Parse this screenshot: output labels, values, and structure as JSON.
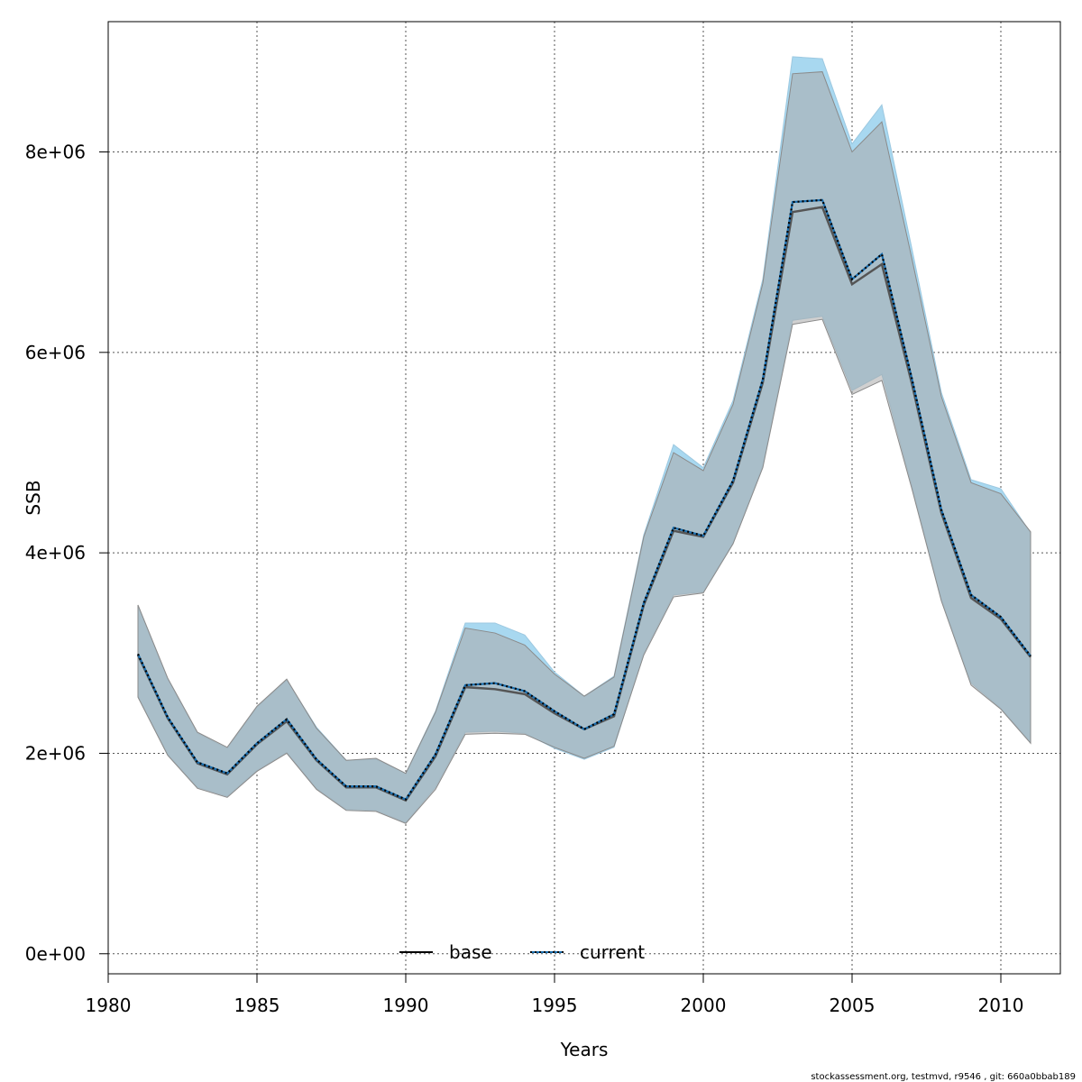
{
  "chart_data": {
    "type": "line",
    "xlabel": "Years",
    "ylabel": "SSB",
    "xlim": [
      1980,
      2012
    ],
    "ylim": [
      -200000,
      9300000
    ],
    "x_ticks": [
      1980,
      1985,
      1990,
      1995,
      2000,
      2005,
      2010
    ],
    "y_ticks": [
      0,
      2000000,
      4000000,
      6000000,
      8000000
    ],
    "y_tick_labels": [
      "0e+00",
      "2e+06",
      "4e+06",
      "6e+06",
      "8e+06"
    ],
    "grid": true,
    "legend_position": "bottom-center",
    "x": [
      1981,
      1982,
      1983,
      1984,
      1985,
      1986,
      1987,
      1988,
      1989,
      1990,
      1991,
      1992,
      1993,
      1994,
      1995,
      1996,
      1997,
      1998,
      1999,
      2000,
      2001,
      2002,
      2003,
      2004,
      2005,
      2006,
      2007,
      2008,
      2009,
      2010,
      2011
    ],
    "series": [
      {
        "name": "base",
        "line_color": "#000000",
        "band_color": "#a9a9a9",
        "dash": "solid",
        "values": [
          2980000,
          2350000,
          1900000,
          1790000,
          2090000,
          2320000,
          1930000,
          1660000,
          1660000,
          1530000,
          1970000,
          2660000,
          2640000,
          2590000,
          2400000,
          2240000,
          2370000,
          3480000,
          4220000,
          4160000,
          4700000,
          5700000,
          7400000,
          7450000,
          6680000,
          6880000,
          5700000,
          4400000,
          3550000,
          3340000,
          2960000
        ],
        "lower": [
          2560000,
          1980000,
          1650000,
          1560000,
          1820000,
          2000000,
          1640000,
          1430000,
          1420000,
          1300000,
          1640000,
          2190000,
          2200000,
          2190000,
          2060000,
          1950000,
          2070000,
          2980000,
          3560000,
          3600000,
          4090000,
          4850000,
          6280000,
          6330000,
          5580000,
          5720000,
          4650000,
          3520000,
          2680000,
          2440000,
          2100000
        ],
        "upper": [
          3480000,
          2750000,
          2210000,
          2060000,
          2470000,
          2740000,
          2250000,
          1930000,
          1950000,
          1800000,
          2410000,
          3250000,
          3200000,
          3080000,
          2790000,
          2570000,
          2760000,
          4160000,
          5000000,
          4820000,
          5480000,
          6690000,
          8780000,
          8800000,
          8000000,
          8300000,
          6950000,
          5560000,
          4700000,
          4590000,
          4210000
        ]
      },
      {
        "name": "current",
        "line_color": "#000000",
        "dash_color": "#1a6fb0",
        "band_color": "#a8d8f0",
        "dash": "dotted",
        "values": [
          2990000,
          2360000,
          1910000,
          1800000,
          2100000,
          2340000,
          1940000,
          1670000,
          1670000,
          1540000,
          1990000,
          2680000,
          2700000,
          2620000,
          2420000,
          2240000,
          2390000,
          3500000,
          4250000,
          4170000,
          4720000,
          5730000,
          7500000,
          7520000,
          6730000,
          6980000,
          5750000,
          4430000,
          3580000,
          3360000,
          2970000
        ],
        "lower": [
          2570000,
          1990000,
          1660000,
          1570000,
          1830000,
          2010000,
          1650000,
          1440000,
          1430000,
          1310000,
          1660000,
          2210000,
          2220000,
          2200000,
          2050000,
          1940000,
          2060000,
          3000000,
          3580000,
          3610000,
          4100000,
          4870000,
          6320000,
          6360000,
          5620000,
          5780000,
          4680000,
          3540000,
          2700000,
          2450000,
          2110000
        ],
        "upper": [
          3470000,
          2740000,
          2200000,
          2050000,
          2460000,
          2730000,
          2260000,
          1930000,
          1940000,
          1800000,
          2420000,
          3300000,
          3300000,
          3180000,
          2810000,
          2570000,
          2770000,
          4180000,
          5080000,
          4850000,
          5520000,
          6730000,
          8950000,
          8930000,
          8080000,
          8470000,
          7050000,
          5600000,
          4730000,
          4640000,
          4200000
        ]
      }
    ]
  },
  "footer": "stockassessment.org, testmvd, r9546 , git: 660a0bbab189"
}
